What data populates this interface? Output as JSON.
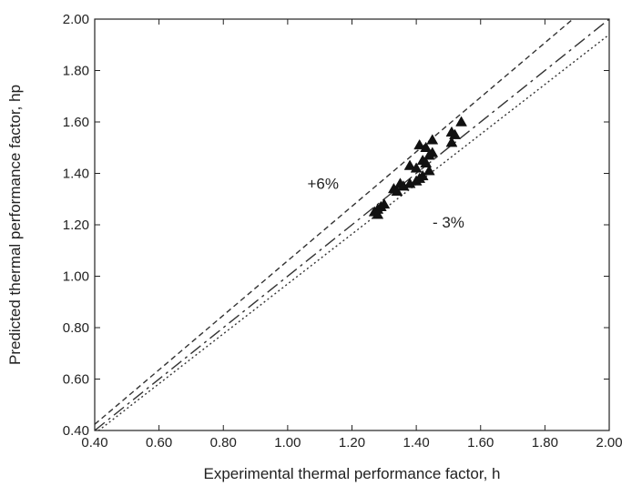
{
  "chart_data": {
    "type": "scatter",
    "xlabel": "Experimental thermal performance factor, h",
    "ylabel": "Predicted thermal performance factor, hp",
    "xlim": [
      0.4,
      2.0
    ],
    "ylim": [
      0.4,
      2.0
    ],
    "xticks": [
      "0.40",
      "0.60",
      "0.80",
      "1.00",
      "1.20",
      "1.40",
      "1.60",
      "1.80",
      "2.00"
    ],
    "yticks": [
      "0.40",
      "0.60",
      "0.80",
      "1.00",
      "1.20",
      "1.40",
      "1.60",
      "1.80",
      "2.00"
    ],
    "grid": false,
    "marker": "filled-triangle",
    "points": [
      [
        1.27,
        1.25
      ],
      [
        1.28,
        1.26
      ],
      [
        1.29,
        1.27
      ],
      [
        1.3,
        1.28
      ],
      [
        1.28,
        1.24
      ],
      [
        1.33,
        1.34
      ],
      [
        1.34,
        1.33
      ],
      [
        1.35,
        1.36
      ],
      [
        1.36,
        1.35
      ],
      [
        1.38,
        1.36
      ],
      [
        1.38,
        1.43
      ],
      [
        1.4,
        1.42
      ],
      [
        1.4,
        1.37
      ],
      [
        1.41,
        1.38
      ],
      [
        1.42,
        1.39
      ],
      [
        1.41,
        1.51
      ],
      [
        1.43,
        1.5
      ],
      [
        1.42,
        1.45
      ],
      [
        1.43,
        1.44
      ],
      [
        1.44,
        1.47
      ],
      [
        1.45,
        1.53
      ],
      [
        1.44,
        1.41
      ],
      [
        1.45,
        1.48
      ],
      [
        1.51,
        1.56
      ],
      [
        1.52,
        1.55
      ],
      [
        1.51,
        1.52
      ],
      [
        1.54,
        1.6
      ]
    ],
    "lines": [
      {
        "label": "+6%",
        "style": "dashed",
        "factor": 1.06
      },
      {
        "label": "",
        "style": "dash-dot",
        "factor": 1.0
      },
      {
        "label": "- 3%",
        "style": "dotted",
        "factor": 0.97
      }
    ],
    "annotations": [
      {
        "text": "+6%",
        "x": 1.11,
        "y": 1.34
      },
      {
        "text": "- 3%",
        "x": 1.5,
        "y": 1.19
      }
    ]
  }
}
